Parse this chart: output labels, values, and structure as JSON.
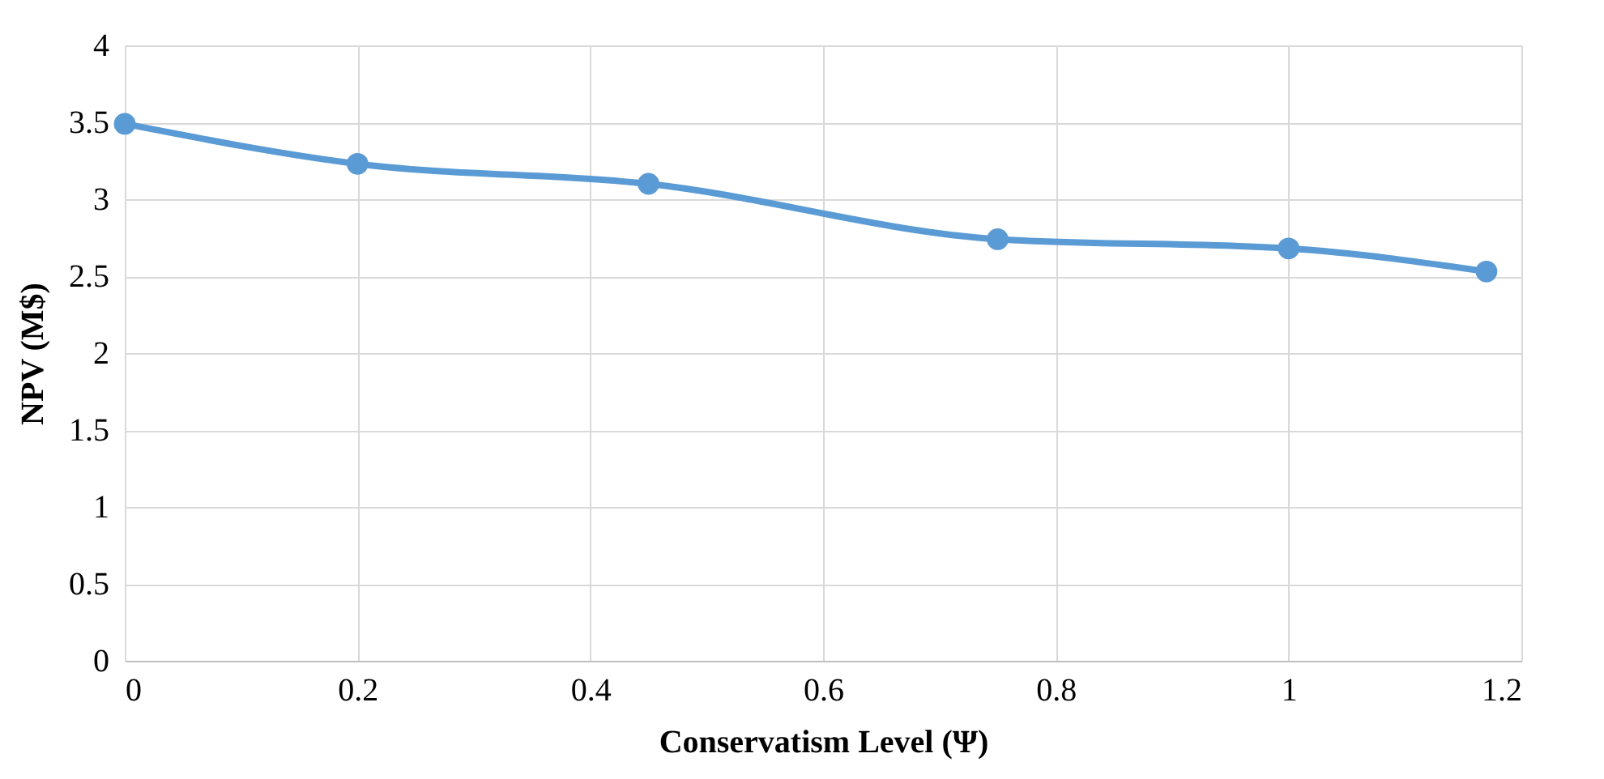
{
  "chart_data": {
    "type": "line",
    "xlabel": "Conservatism Level (Ψ)",
    "ylabel": "NPV (M$)",
    "x": [
      0,
      0.2,
      0.45,
      0.75,
      1,
      1.17
    ],
    "series": [
      {
        "color": "#5b9bd5",
        "values": [
          3.49,
          3.23,
          3.1,
          2.74,
          2.68,
          2.53
        ]
      }
    ],
    "xlim": [
      0,
      1.2
    ],
    "xticks": [
      0,
      0.2,
      0.4,
      0.6,
      0.8,
      1,
      1.2
    ],
    "ylim": [
      0,
      4
    ],
    "yticks": [
      0,
      0.5,
      1,
      1.5,
      2,
      2.5,
      3,
      3.5,
      4
    ],
    "grid": true,
    "marker": "circle",
    "line_style": "solid"
  }
}
